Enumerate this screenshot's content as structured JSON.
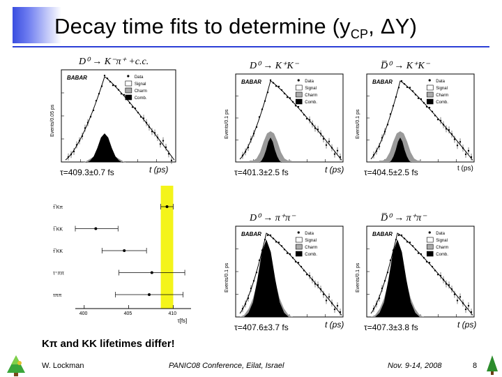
{
  "title": {
    "text": "Decay time fits to determine (y",
    "sub": "CP",
    "rest": ", ΔY)"
  },
  "plots": {
    "kpi": {
      "decay": "D⁰ → K⁻π⁺ +c.c.",
      "lifetime": "τ=409.3±0.7 fs",
      "xlabel": "t  (ps)",
      "ylabel": "Events/0.05 ps",
      "legend": [
        "Data",
        "Signal",
        "Charm",
        "Comb."
      ],
      "exp": "BABAR"
    },
    "kk": {
      "decay": "D⁰ → K⁺K⁻",
      "lifetime": "τ=401.3±2.5 fs",
      "xlabel": "t  (ps)",
      "ylabel": "Events/0.1 ps",
      "legend": [
        "Data",
        "Signal",
        "Charm",
        "Comb."
      ],
      "exp": "BABAR"
    },
    "kkbar": {
      "decay": "D̅⁰ → K⁺K⁻",
      "lifetime": "τ=404.5±2.5 fs",
      "xlabel": "t  (ps)",
      "ylabel": "Events/0.1 ps",
      "legend": [
        "Data",
        "Signal",
        "Charm",
        "Comb."
      ],
      "exp": "BABAR"
    },
    "pipi": {
      "decay": "D⁰ → π⁺π⁻",
      "lifetime": "τ=407.6±3.7 fs",
      "xlabel": "t  (ps)",
      "ylabel": "Events/0.1 ps",
      "legend": [
        "Data",
        "Signal",
        "Charm",
        "Comb."
      ],
      "exp": "BABAR"
    },
    "pipibar": {
      "decay": "D̅⁰ → π⁺π⁻",
      "lifetime": "τ=407.3±3.8 fs",
      "xlabel": "t  (ps)",
      "ylabel": "Events/0.1 ps",
      "legend": [
        "Data",
        "Signal",
        "Charm",
        "Comb."
      ],
      "exp": "BABAR"
    }
  },
  "chart_data": {
    "type": "scatter",
    "title": "",
    "xlabel": "τ[fs]",
    "xlim": [
      399,
      412
    ],
    "xticks": [
      400,
      405,
      410
    ],
    "categories": [
      "τ̅ Kπ",
      "τ̅ KK",
      "τ̅ KK",
      "τ⁺ππ",
      "τππ"
    ],
    "values": [
      409.3,
      401.3,
      404.5,
      407.6,
      407.3
    ],
    "errors": [
      0.7,
      2.5,
      2.5,
      3.7,
      3.8
    ],
    "band": [
      408.6,
      410.0
    ],
    "band_color": "#f4f41a"
  },
  "conclusion": "Kπ and KK lifetimes differ!",
  "footer": {
    "author": "W. Lockman",
    "conference": "PANIC08 Conference, Eilat, Israel",
    "date": "Nov. 9-14, 2008",
    "page": "8"
  }
}
